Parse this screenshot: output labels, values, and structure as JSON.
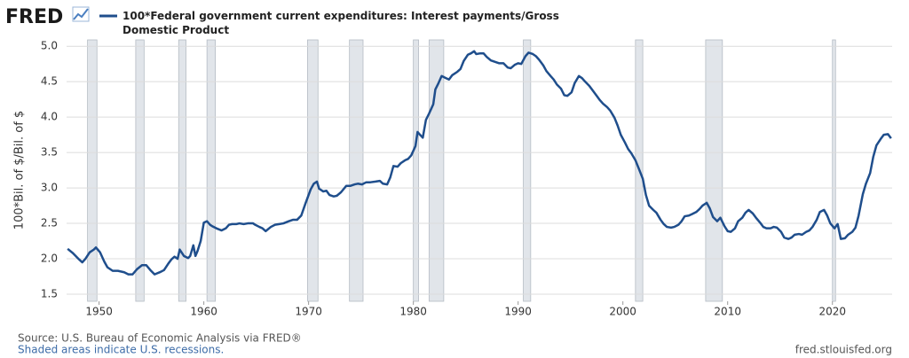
{
  "chart_data": {
    "type": "line",
    "logo": "FRED",
    "y_label": "100*Bil. of $/Bil. of $",
    "source": "Source: U.S. Bureau of Economic Analysis via FRED®",
    "note": "Shaded areas indicate U.S. recessions.",
    "url": "fred.stlouisfed.org",
    "xlim": [
      1946.9,
      2025.7
    ],
    "xticks": [
      1950,
      1960,
      1970,
      1980,
      1990,
      2000,
      2010,
      2020
    ],
    "ylim": [
      1.4,
      5.09
    ],
    "yticks": [
      1.5,
      {
        "value": 2,
        "label": "2.0"
      },
      2.5,
      {
        "value": 3,
        "label": "3.0"
      },
      3.5,
      {
        "value": 4,
        "label": "4.0"
      },
      4.5,
      {
        "value": 5,
        "label": "5.0"
      }
    ],
    "grid": true,
    "recession_color": "#e1e5ea",
    "recessions": [
      [
        1948.9,
        1949.8
      ],
      [
        1953.5,
        1954.3
      ],
      [
        1957.6,
        1958.3
      ],
      [
        1960.3,
        1961.1
      ],
      [
        1969.9,
        1970.9
      ],
      [
        1973.9,
        1975.2
      ],
      [
        1980.0,
        1980.5
      ],
      [
        1981.5,
        1982.9
      ],
      [
        1990.5,
        1991.2
      ],
      [
        2001.2,
        2001.9
      ],
      [
        2007.9,
        2009.5
      ],
      [
        2020.0,
        2020.3
      ]
    ],
    "x": [
      1947.0,
      1947.5,
      1948.1,
      1948.4,
      1948.7,
      1949.1,
      1949.5,
      1949.7,
      1950.1,
      1950.5,
      1950.8,
      1951.3,
      1951.8,
      1952.4,
      1952.8,
      1953.2,
      1953.6,
      1954.1,
      1954.5,
      1954.9,
      1955.3,
      1955.8,
      1956.2,
      1956.6,
      1956.9,
      1957.2,
      1957.5,
      1957.7,
      1958.1,
      1958.5,
      1958.7,
      1959.0,
      1959.2,
      1959.4,
      1959.7,
      1960.0,
      1960.3,
      1960.6,
      1960.8,
      1961.2,
      1961.7,
      1962.1,
      1962.4,
      1962.7,
      1963.1,
      1963.4,
      1963.8,
      1964.2,
      1964.7,
      1964.9,
      1965.3,
      1965.6,
      1965.9,
      1966.4,
      1966.8,
      1967.2,
      1967.6,
      1968.1,
      1968.5,
      1968.9,
      1969.3,
      1969.7,
      1970.2,
      1970.5,
      1970.8,
      1971.0,
      1971.4,
      1971.7,
      1972.0,
      1972.4,
      1972.7,
      1973.1,
      1973.6,
      1974.0,
      1974.4,
      1974.7,
      1975.1,
      1975.5,
      1975.9,
      1976.4,
      1976.8,
      1977.1,
      1977.5,
      1977.8,
      1978.1,
      1978.5,
      1978.8,
      1979.2,
      1979.5,
      1979.8,
      1980.2,
      1980.4,
      1980.7,
      1980.9,
      1981.2,
      1981.5,
      1981.9,
      1982.1,
      1982.4,
      1982.7,
      1983.1,
      1983.4,
      1983.7,
      1984.2,
      1984.5,
      1984.8,
      1985.2,
      1985.5,
      1985.8,
      1986.0,
      1986.4,
      1986.7,
      1987.0,
      1987.4,
      1987.8,
      1988.2,
      1988.6,
      1989.0,
      1989.3,
      1989.7,
      1990.0,
      1990.3,
      1990.7,
      1991.0,
      1991.4,
      1991.7,
      1992.0,
      1992.4,
      1992.7,
      1993.1,
      1993.4,
      1993.7,
      1994.1,
      1994.4,
      1994.7,
      1995.1,
      1995.4,
      1995.8,
      1996.1,
      1996.4,
      1996.8,
      1997.1,
      1997.5,
      1997.8,
      1998.1,
      1998.5,
      1998.8,
      1999.2,
      1999.5,
      1999.8,
      2000.2,
      2000.5,
      2000.8,
      2001.2,
      2001.5,
      2001.9,
      2002.2,
      2002.5,
      2002.9,
      2003.2,
      2003.6,
      2003.9,
      2004.2,
      2004.6,
      2004.9,
      2005.3,
      2005.6,
      2005.9,
      2006.3,
      2006.6,
      2007.0,
      2007.3,
      2007.6,
      2008.0,
      2008.3,
      2008.6,
      2009.0,
      2009.3,
      2009.7,
      2010.0,
      2010.3,
      2010.7,
      2011.0,
      2011.4,
      2011.7,
      2012.0,
      2012.4,
      2012.7,
      2013.1,
      2013.4,
      2013.7,
      2014.1,
      2014.4,
      2014.7,
      2015.1,
      2015.4,
      2015.8,
      2016.1,
      2016.4,
      2016.8,
      2017.1,
      2017.5,
      2017.8,
      2018.1,
      2018.5,
      2018.8,
      2019.2,
      2019.5,
      2019.8,
      2020.2,
      2020.5,
      2020.8,
      2021.2,
      2021.5,
      2021.9,
      2022.2,
      2022.5,
      2022.9,
      2023.2,
      2023.6,
      2023.9,
      2024.2,
      2024.6,
      2024.9,
      2025.3,
      2025.6
    ],
    "series": [
      {
        "name": "100*Federal government current expenditures: Interest payments/Gross Domestic Product",
        "color": "#1f4e8c",
        "values": [
          2.14,
          2.08,
          1.99,
          1.95,
          2.0,
          2.09,
          2.13,
          2.16,
          2.09,
          1.96,
          1.88,
          1.83,
          1.83,
          1.81,
          1.78,
          1.78,
          1.85,
          1.91,
          1.91,
          1.84,
          1.78,
          1.81,
          1.84,
          1.93,
          1.99,
          2.03,
          2.0,
          2.13,
          2.04,
          2.01,
          2.04,
          2.19,
          2.04,
          2.11,
          2.25,
          2.51,
          2.53,
          2.48,
          2.46,
          2.43,
          2.4,
          2.43,
          2.48,
          2.49,
          2.49,
          2.5,
          2.49,
          2.5,
          2.5,
          2.48,
          2.45,
          2.43,
          2.39,
          2.45,
          2.48,
          2.49,
          2.5,
          2.53,
          2.55,
          2.55,
          2.61,
          2.78,
          2.98,
          3.06,
          3.09,
          2.99,
          2.95,
          2.96,
          2.9,
          2.88,
          2.89,
          2.94,
          3.03,
          3.03,
          3.05,
          3.06,
          3.05,
          3.08,
          3.08,
          3.09,
          3.1,
          3.06,
          3.05,
          3.15,
          3.31,
          3.3,
          3.35,
          3.39,
          3.41,
          3.46,
          3.59,
          3.79,
          3.74,
          3.71,
          3.96,
          4.05,
          4.18,
          4.39,
          4.48,
          4.58,
          4.55,
          4.53,
          4.59,
          4.64,
          4.68,
          4.79,
          4.88,
          4.9,
          4.93,
          4.89,
          4.9,
          4.9,
          4.85,
          4.8,
          4.78,
          4.76,
          4.76,
          4.7,
          4.69,
          4.74,
          4.76,
          4.75,
          4.86,
          4.91,
          4.89,
          4.86,
          4.81,
          4.73,
          4.65,
          4.58,
          4.53,
          4.46,
          4.4,
          4.31,
          4.3,
          4.35,
          4.48,
          4.58,
          4.55,
          4.5,
          4.44,
          4.38,
          4.3,
          4.24,
          4.19,
          4.14,
          4.09,
          3.99,
          3.88,
          3.75,
          3.64,
          3.55,
          3.49,
          3.39,
          3.28,
          3.13,
          2.9,
          2.75,
          2.69,
          2.65,
          2.55,
          2.49,
          2.45,
          2.44,
          2.45,
          2.48,
          2.53,
          2.6,
          2.61,
          2.63,
          2.66,
          2.7,
          2.75,
          2.79,
          2.71,
          2.59,
          2.53,
          2.58,
          2.46,
          2.39,
          2.38,
          2.43,
          2.53,
          2.58,
          2.65,
          2.69,
          2.64,
          2.58,
          2.51,
          2.45,
          2.43,
          2.43,
          2.45,
          2.44,
          2.38,
          2.3,
          2.28,
          2.3,
          2.34,
          2.35,
          2.34,
          2.38,
          2.4,
          2.45,
          2.55,
          2.66,
          2.69,
          2.61,
          2.5,
          2.43,
          2.49,
          2.28,
          2.29,
          2.34,
          2.38,
          2.44,
          2.61,
          2.91,
          3.06,
          3.21,
          3.44,
          3.6,
          3.69,
          3.75,
          3.76,
          3.7
        ]
      }
    ]
  }
}
